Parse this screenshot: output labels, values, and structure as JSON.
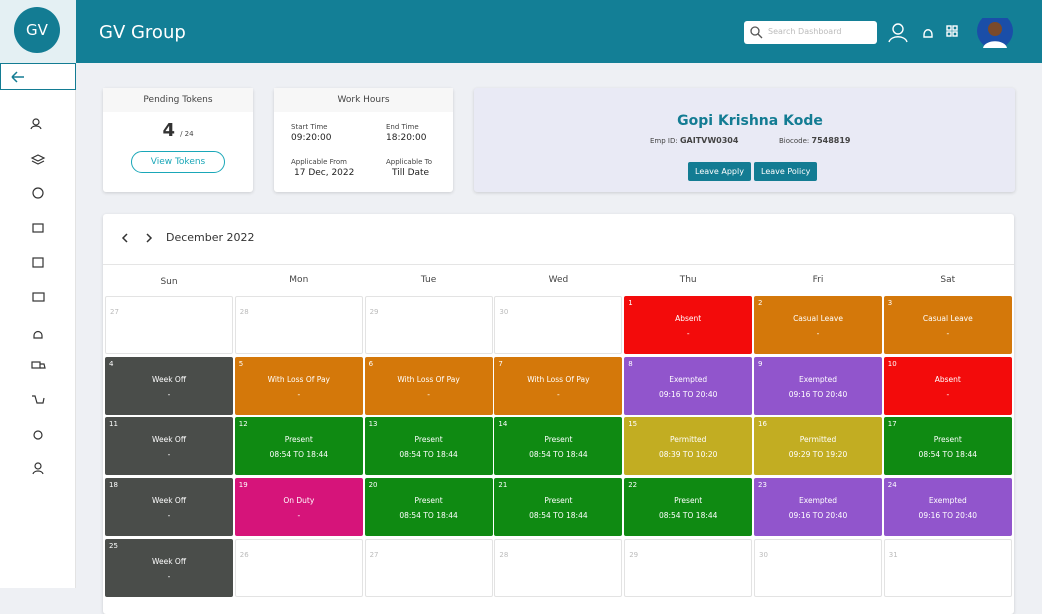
{
  "brand": {
    "logo": "GV",
    "title": "GV Group"
  },
  "search_placeholder": "Search Dashboard",
  "pending_tokens": {
    "title": "Pending Tokens",
    "count": "4",
    "total": "/ 24",
    "button": "View Tokens"
  },
  "work_hours": {
    "title": "Work Hours",
    "start_label": "Start Time",
    "start": "09:20:00",
    "end_label": "End Time",
    "end": "18:20:00",
    "from_label": "Applicable From",
    "from": "17 Dec, 2022",
    "to_label": "Applicable To",
    "to": "Till Date"
  },
  "profile": {
    "name": "Gopi Krishna Kode",
    "emp_label": "Emp ID:",
    "emp_id": "GAITVW0304",
    "bio_label": "Biocode:",
    "biocode": "7548819",
    "buttons": [
      "Leave Apply",
      "Leave Policy"
    ]
  },
  "calendar": {
    "month": "December 2022",
    "weekdays": [
      "Sun",
      "Mon",
      "Tue",
      "Wed",
      "Thu",
      "Fri",
      "Sat"
    ],
    "weeks": [
      [
        {
          "day": "27",
          "muted": true
        },
        {
          "day": "28",
          "muted": true
        },
        {
          "day": "29",
          "muted": true
        },
        {
          "day": "30",
          "muted": true
        },
        {
          "day": "1",
          "status": "Absent",
          "time": "-",
          "color": "#f30b0b"
        },
        {
          "day": "2",
          "status": "Casual Leave",
          "time": "-",
          "color": "#d4780a"
        },
        {
          "day": "3",
          "status": "Casual Leave",
          "time": "-",
          "color": "#d4780a"
        }
      ],
      [
        {
          "day": "4",
          "status": "Week Off",
          "time": "-",
          "color": "#4a4d4a"
        },
        {
          "day": "5",
          "status": "With Loss Of Pay",
          "time": "-",
          "color": "#d4780a"
        },
        {
          "day": "6",
          "status": "With Loss Of Pay",
          "time": "-",
          "color": "#d4780a"
        },
        {
          "day": "7",
          "status": "With Loss Of Pay",
          "time": "-",
          "color": "#d4780a"
        },
        {
          "day": "8",
          "status": "Exempted",
          "time": "09:16 TO 20:40",
          "color": "#9155cc"
        },
        {
          "day": "9",
          "status": "Exempted",
          "time": "09:16 TO 20:40",
          "color": "#9155cc"
        },
        {
          "day": "10",
          "status": "Absent",
          "time": "-",
          "color": "#f30b0b"
        }
      ],
      [
        {
          "day": "11",
          "status": "Week Off",
          "time": "-",
          "color": "#4a4d4a"
        },
        {
          "day": "12",
          "status": "Present",
          "time": "08:54 TO 18:44",
          "color": "#0f8a12"
        },
        {
          "day": "13",
          "status": "Present",
          "time": "08:54 TO 18:44",
          "color": "#0f8a12"
        },
        {
          "day": "14",
          "status": "Present",
          "time": "08:54 TO 18:44",
          "color": "#0f8a12"
        },
        {
          "day": "15",
          "status": "Permitted",
          "time": "08:39 TO 10:20",
          "color": "#c2ad22"
        },
        {
          "day": "16",
          "status": "Permitted",
          "time": "09:29 TO 19:20",
          "color": "#c2ad22"
        },
        {
          "day": "17",
          "status": "Present",
          "time": "08:54 TO 18:44",
          "color": "#0f8a12"
        }
      ],
      [
        {
          "day": "18",
          "status": "Week Off",
          "time": "-",
          "color": "#4a4d4a"
        },
        {
          "day": "19",
          "status": "On Duty",
          "time": "-",
          "color": "#d6147a"
        },
        {
          "day": "20",
          "status": "Present",
          "time": "08:54 TO 18:44",
          "color": "#0f8a12"
        },
        {
          "day": "21",
          "status": "Present",
          "time": "08:54 TO 18:44",
          "color": "#0f8a12"
        },
        {
          "day": "22",
          "status": "Present",
          "time": "08:54 TO 18:44",
          "color": "#0f8a12"
        },
        {
          "day": "23",
          "status": "Exempted",
          "time": "09:16 TO 20:40",
          "color": "#9155cc"
        },
        {
          "day": "24",
          "status": "Exempted",
          "time": "09:16 TO 20:40",
          "color": "#9155cc"
        }
      ],
      [
        {
          "day": "25",
          "status": "Week Off",
          "time": "-",
          "color": "#4a4d4a"
        },
        {
          "day": "26"
        },
        {
          "day": "27"
        },
        {
          "day": "28"
        },
        {
          "day": "29"
        },
        {
          "day": "30"
        },
        {
          "day": "31"
        }
      ]
    ]
  }
}
